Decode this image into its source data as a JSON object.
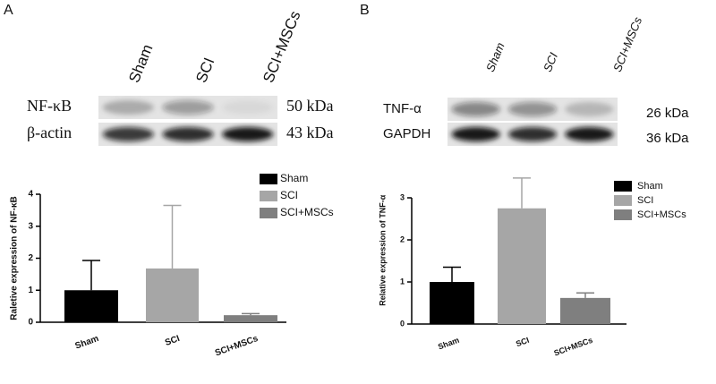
{
  "chart_data": [
    {
      "type": "bar",
      "panel": "A",
      "lanes": [
        "Sham",
        "SCI",
        "SCI+MSCs"
      ],
      "blot_rows": [
        {
          "protein": "NF-κB",
          "size": "50 kDa"
        },
        {
          "protein": "β-actin",
          "size": "43 kDa"
        }
      ],
      "y_label": "Raletive expression of NF-κB",
      "categories": [
        "Sham",
        "SCI",
        "SCI+MSCs"
      ],
      "values": [
        1.0,
        1.68,
        0.22
      ],
      "errors": [
        0.93,
        1.97,
        0.05
      ],
      "colors": [
        "#000000",
        "#a6a6a6",
        "#7f7f7f"
      ],
      "ylim": [
        0,
        4
      ],
      "yticks": [
        0,
        1,
        2,
        3,
        4
      ]
    },
    {
      "type": "bar",
      "panel": "B",
      "lanes": [
        "Sham",
        "SCI",
        "SCI+MSCs"
      ],
      "blot_rows": [
        {
          "protein": "TNF-α",
          "size": "26 kDa"
        },
        {
          "protein": "GAPDH",
          "size": "36 kDa"
        }
      ],
      "y_label": "Relative expression of TNF-α",
      "categories": [
        "Sham",
        "SCI",
        "SCI+MSCs"
      ],
      "values": [
        1.0,
        2.75,
        0.62
      ],
      "errors": [
        0.35,
        0.72,
        0.12
      ],
      "colors": [
        "#000000",
        "#a6a6a6",
        "#7f7f7f"
      ],
      "ylim": [
        0,
        3.5
      ],
      "yticks": [
        0,
        1,
        2,
        3
      ]
    }
  ]
}
